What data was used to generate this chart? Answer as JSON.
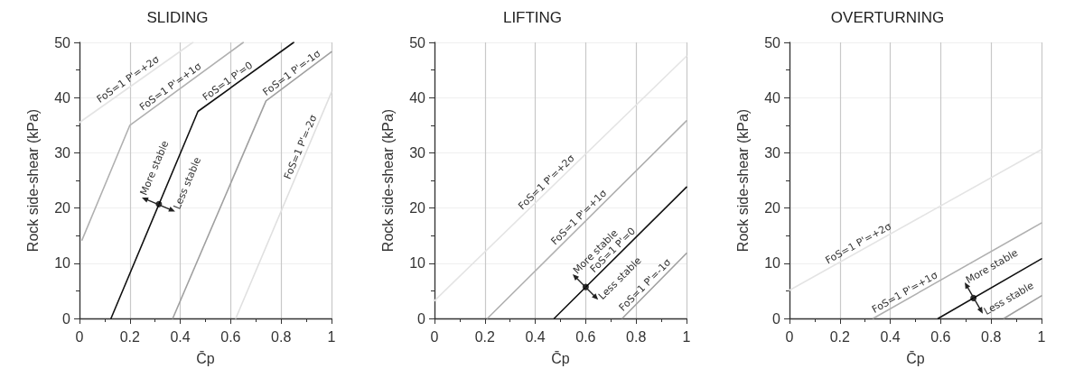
{
  "chart_data": [
    {
      "type": "line",
      "title": "SLIDING",
      "xlabel": "C̄p",
      "ylabel": "Rock side-shear (kPa)",
      "xlim": [
        0,
        1
      ],
      "xticks": [
        0,
        0.2,
        0.4,
        0.6,
        0.8,
        1
      ],
      "ylim": [
        0,
        50
      ],
      "yticks": [
        0,
        10,
        20,
        30,
        40,
        50
      ],
      "grid": true,
      "marker": "none",
      "line_style": "solid",
      "series": [
        {
          "color": "#e4e4e4",
          "x": [
            0,
            0.45
          ],
          "values": [
            35.5,
            50
          ]
        },
        {
          "color": "#b0b0b0",
          "x": [
            0.01,
            0.2,
            0.65
          ],
          "values": [
            14.2,
            35,
            50
          ]
        },
        {
          "color": "#111111",
          "x": [
            0.125,
            0.47,
            0.85
          ],
          "values": [
            0,
            37.5,
            50
          ]
        },
        {
          "color": "#a0a0a0",
          "x": [
            0.37,
            0.74,
            1
          ],
          "values": [
            0,
            39.4,
            48.3
          ]
        },
        {
          "color": "#e0e0e0",
          "x": [
            0.62,
            1
          ],
          "values": [
            0,
            41
          ]
        },
        {
          "type": "scatter",
          "color": "#000000",
          "x": [
            0.315
          ],
          "values": [
            20.7
          ]
        }
      ],
      "annotations": [
        {
          "text": "FoS=1 P'=+2σ",
          "x": 0.09,
          "y": 38.4
        },
        {
          "text": "FoS=1 P'=+1σ",
          "x": 0.26,
          "y": 37
        },
        {
          "text": "FoS=1 P'=0",
          "x": 0.51,
          "y": 38.8
        },
        {
          "text": "FoS=1 P'=-1σ",
          "x": 0.75,
          "y": 39.7
        },
        {
          "text": "FoS=1 P'=-2σ",
          "x": 0.85,
          "y": 24.8
        },
        {
          "text": "More stable",
          "x": 0.315,
          "y": 20.7
        },
        {
          "text": "Less stable",
          "x": 0.315,
          "y": 20.7
        }
      ]
    },
    {
      "type": "line",
      "title": "LIFTING",
      "xlabel": "C̄p",
      "ylabel": "Rock side-shear (kPa)",
      "xlim": [
        0,
        1
      ],
      "xticks": [
        0,
        0.2,
        0.4,
        0.6,
        0.8,
        1
      ],
      "ylim": [
        0,
        50
      ],
      "yticks": [
        0,
        10,
        20,
        30,
        40,
        50
      ],
      "grid": true,
      "marker": "none",
      "line_style": "solid",
      "series": [
        {
          "color": "#e4e4e4",
          "x": [
            0,
            1
          ],
          "values": [
            3.2,
            47.5
          ]
        },
        {
          "color": "#b0b0b0",
          "x": [
            0.21,
            1
          ],
          "values": [
            0,
            35.8
          ]
        },
        {
          "color": "#111111",
          "x": [
            0.475,
            1
          ],
          "values": [
            0,
            23.8
          ]
        },
        {
          "color": "#a0a0a0",
          "x": [
            0.745,
            1
          ],
          "values": [
            0,
            11.8
          ]
        },
        {
          "type": "scatter",
          "color": "#000000",
          "x": [
            0.6
          ],
          "values": [
            5.7
          ]
        }
      ],
      "annotations": [
        {
          "text": "FoS=1 P'=+2σ",
          "x": 0.36,
          "y": 19.1
        },
        {
          "text": "FoS=1 P'=+1σ",
          "x": 0.49,
          "y": 12.7
        },
        {
          "text": "FoS=1 P'=0",
          "x": 0.645,
          "y": 7.7
        },
        {
          "text": "FoS=1 P'=-1σ",
          "x": 0.76,
          "y": 0.7
        },
        {
          "text": "More stable",
          "x": 0.6,
          "y": 5.7
        },
        {
          "text": "Less stable",
          "x": 0.6,
          "y": 5.7
        }
      ]
    },
    {
      "type": "line",
      "title": "OVERTURNING",
      "xlabel": "C̄p",
      "ylabel": "Rock side-shear (kPa)",
      "xlim": [
        0,
        1
      ],
      "xticks": [
        0,
        0.2,
        0.4,
        0.6,
        0.8,
        1
      ],
      "ylim": [
        0,
        50
      ],
      "yticks": [
        0,
        10,
        20,
        30,
        40,
        50
      ],
      "grid": true,
      "marker": "none",
      "line_style": "solid",
      "series": [
        {
          "color": "#e4e4e4",
          "x": [
            0,
            1
          ],
          "values": [
            5.1,
            30.6
          ]
        },
        {
          "color": "#b0b0b0",
          "x": [
            0.332,
            1
          ],
          "values": [
            0,
            17.3
          ]
        },
        {
          "color": "#111111",
          "x": [
            0.59,
            1
          ],
          "values": [
            0,
            10.8
          ]
        },
        {
          "color": "#a0a0a0",
          "x": [
            0.851,
            1
          ],
          "values": [
            0,
            4.1
          ]
        },
        {
          "type": "scatter",
          "color": "#000000",
          "x": [
            0.73
          ],
          "values": [
            3.7
          ]
        }
      ],
      "annotations": [
        {
          "text": "FoS=1 P'=+2σ",
          "x": 0.16,
          "y": 9.2
        },
        {
          "text": "FoS=1 P'=+1σ",
          "x": 0.345,
          "y": 0.3
        },
        {
          "text": "More stable",
          "x": 0.73,
          "y": 3.7
        },
        {
          "text": "Less stable",
          "x": 0.73,
          "y": 3.7
        }
      ]
    }
  ]
}
